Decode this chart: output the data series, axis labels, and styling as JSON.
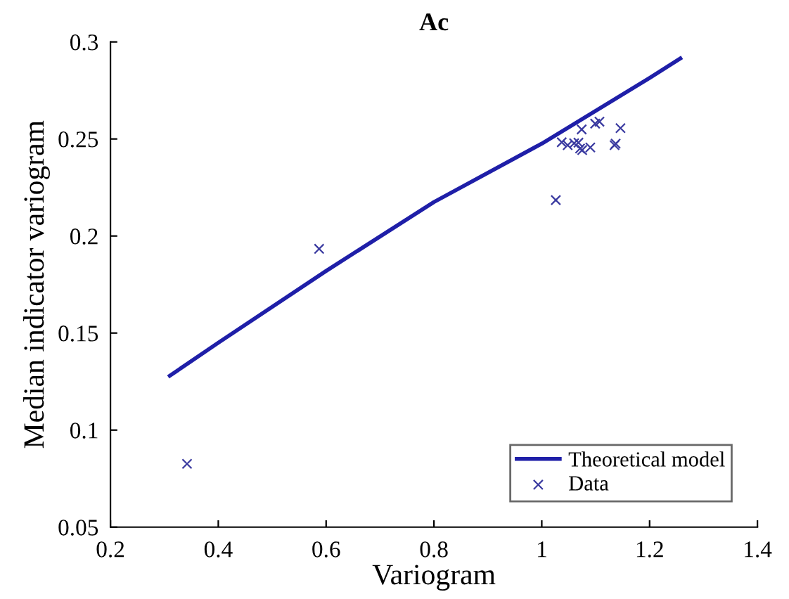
{
  "chart_data": {
    "type": "scatter",
    "title": "Ac",
    "xlabel": "Variogram",
    "ylabel": "Median indicator variogram",
    "xlim": [
      0.2,
      1.4
    ],
    "xticks": [
      0.2,
      0.4,
      0.6,
      0.8,
      1,
      1.2,
      1.4
    ],
    "ylim": [
      0.05,
      0.3
    ],
    "yticks": [
      0.05,
      0.1,
      0.15,
      0.2,
      0.25,
      0.3
    ],
    "grid": false,
    "legend": "bottom right",
    "series": [
      {
        "name": "Theoretical model",
        "type": "line",
        "color": "#1f1fa8",
        "marker": "none",
        "line_style": "solid",
        "x": [
          0.31,
          0.4,
          0.6,
          0.8,
          1.0,
          1.2,
          1.257
        ],
        "values": [
          0.128,
          0.145,
          0.182,
          0.2175,
          0.2476,
          0.2814,
          0.2915
        ]
      },
      {
        "name": "Data",
        "color": "#3a3aa0",
        "marker": "cross",
        "x": [
          0.342,
          0.587,
          1.026,
          1.037,
          1.048,
          1.06,
          1.068,
          1.071,
          1.075,
          1.074,
          1.09,
          1.099,
          1.107,
          1.135,
          1.137,
          1.146
        ],
        "values": [
          0.0826,
          0.1934,
          0.2185,
          0.2483,
          0.2468,
          0.2478,
          0.2481,
          0.2451,
          0.2443,
          0.2549,
          0.2456,
          0.2579,
          0.2589,
          0.2468,
          0.2476,
          0.2556
        ]
      }
    ]
  }
}
